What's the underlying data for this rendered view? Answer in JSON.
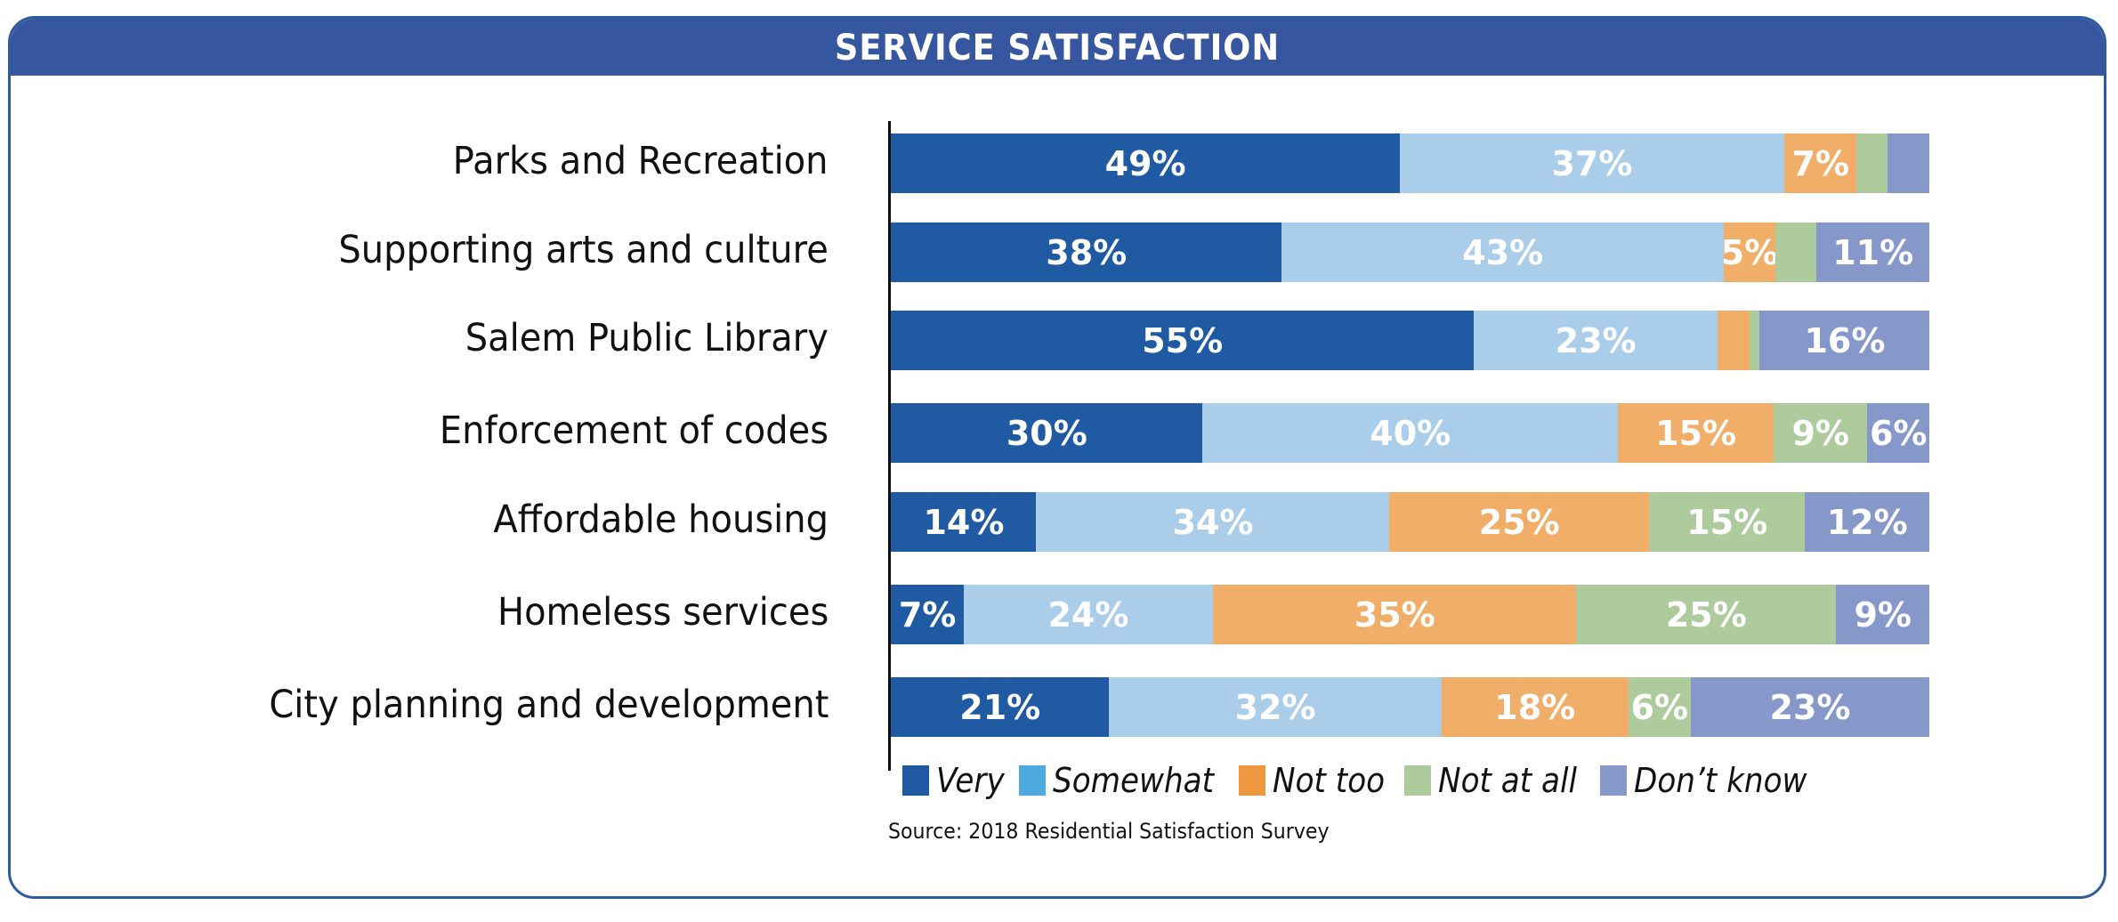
{
  "chart_data": {
    "type": "bar",
    "orientation": "horizontal",
    "stacked": true,
    "title": "SERVICE SATISFACTION",
    "xlabel": "",
    "ylabel": "",
    "categories": [
      "Parks and Recreation",
      "Supporting arts and culture",
      "Salem Public Library",
      "Enforcement of codes",
      "Affordable housing",
      "Homeless services",
      "City planning and development"
    ],
    "series": [
      {
        "name": "Very",
        "color": "#1f5aa2",
        "legend_color": "#1f5aa2",
        "values": [
          49,
          38,
          55,
          30,
          14,
          7,
          21
        ],
        "labels": [
          "49%",
          "38%",
          "55%",
          "30%",
          "14%",
          "7%",
          "21%"
        ]
      },
      {
        "name": "Somewhat",
        "color": "#aacdea",
        "legend_color": "#4ea9de",
        "values": [
          37,
          43,
          23,
          40,
          34,
          24,
          32
        ],
        "labels": [
          "37%",
          "43%",
          "23%",
          "40%",
          "34%",
          "24%",
          "32%"
        ]
      },
      {
        "name": "Not too",
        "color": "#f0ae68",
        "legend_color": "#ed9840",
        "values": [
          7,
          5,
          3,
          15,
          25,
          35,
          18
        ],
        "labels": [
          "7%",
          "5%",
          "",
          "15%",
          "25%",
          "35%",
          "18%"
        ]
      },
      {
        "name": "Not at all",
        "color": "#adcb9c",
        "legend_color": "#adcb9c",
        "values": [
          3,
          4,
          1,
          9,
          15,
          25,
          6
        ],
        "labels": [
          "",
          "",
          "",
          "9%",
          "15%",
          "25%",
          "6%"
        ]
      },
      {
        "name": "Don’t know",
        "color": "#8598c9",
        "legend_color": "#8598c9",
        "values": [
          4,
          11,
          16,
          6,
          12,
          9,
          23
        ],
        "labels": [
          "",
          "11%",
          "16%",
          "6%",
          "12%",
          "9%",
          "23%"
        ]
      }
    ],
    "xlim": [
      0,
      100
    ],
    "grid": false,
    "legend_position": "bottom",
    "source": "Source: 2018 Residential Satisfaction Survey"
  }
}
